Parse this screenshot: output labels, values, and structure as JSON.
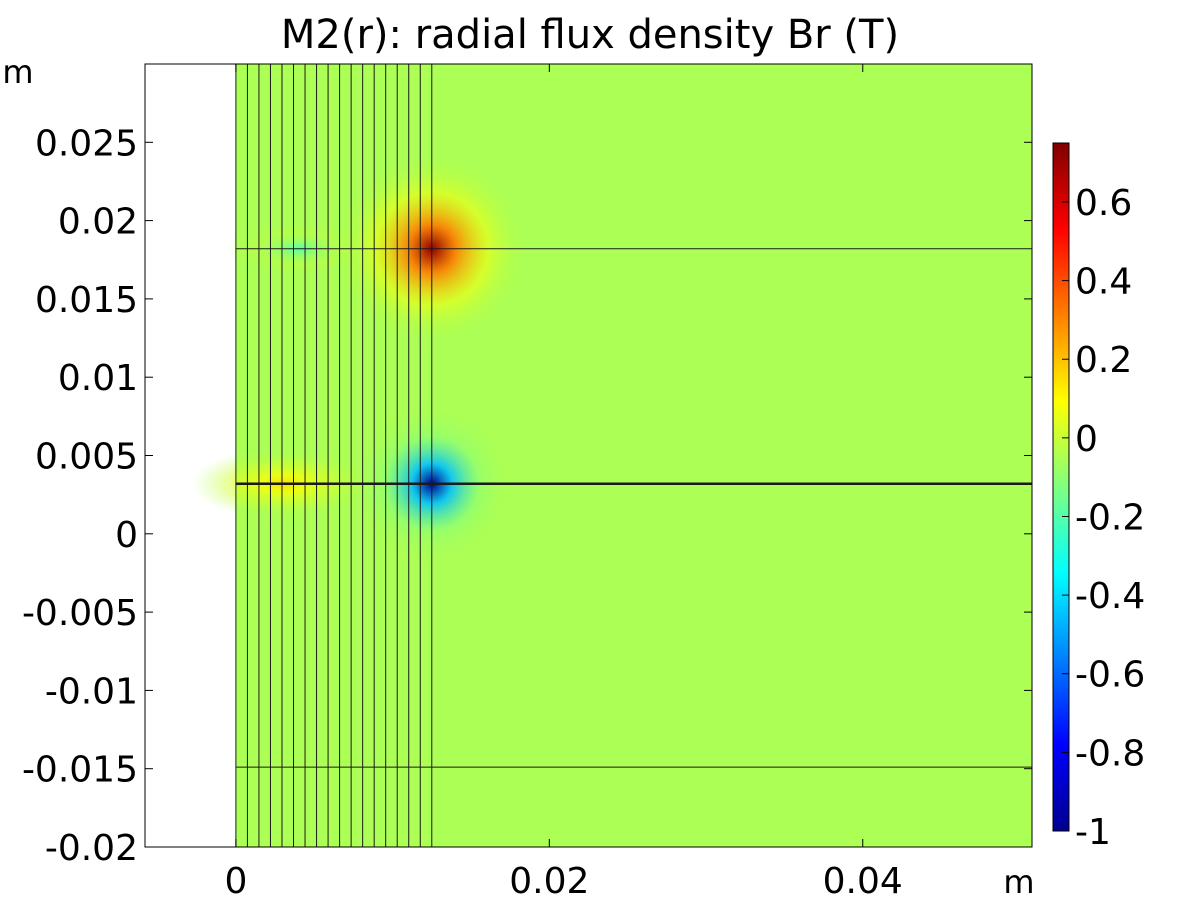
{
  "chart_data": {
    "type": "heatmap",
    "title": "M2(r): radial flux density Br (T)",
    "x_unit_label": "m",
    "y_unit_label": "m",
    "xlim": [
      -0.0058,
      0.0508
    ],
    "ylim": [
      -0.02,
      0.03
    ],
    "x_ticks": [
      0,
      0.02,
      0.04
    ],
    "x_tick_labels": [
      "0",
      "0.02",
      "0.04"
    ],
    "y_ticks": [
      -0.02,
      -0.015,
      -0.01,
      -0.005,
      0,
      0.005,
      0.01,
      0.015,
      0.02,
      0.025
    ],
    "y_tick_labels": [
      "-0.02",
      "-0.015",
      "-0.01",
      "-0.005",
      "0",
      "0.005",
      "0.01",
      "0.015",
      "0.02",
      "0.025"
    ],
    "colorbar": {
      "range": [
        -1,
        0.75
      ],
      "ticks": [
        -1,
        -0.8,
        -0.6,
        -0.4,
        -0.2,
        0,
        0.2,
        0.4,
        0.6
      ],
      "tick_labels": [
        "-1",
        "-0.8",
        "-0.6",
        "-0.4",
        "-0.2",
        "0",
        "0.2",
        "0.4",
        "0.6"
      ],
      "colormap": "rainbow"
    },
    "domain_r": [
      0,
      0.0508
    ],
    "conductor_stack_r_max": 0.0125,
    "conductor_layers": 17,
    "boundary_lines_z": [
      0.0182,
      0.0032,
      -0.0149
    ],
    "background_value": -0.05,
    "field_peaks": [
      {
        "r": 0.0125,
        "z": 0.0182,
        "value": 0.72
      },
      {
        "r": 0.0125,
        "z": 0.0032,
        "value": -1.0
      },
      {
        "r": 0.003,
        "z": 0.0032,
        "value": 0.15
      },
      {
        "r": 0.004,
        "z": 0.0182,
        "value": -0.2
      }
    ],
    "grid": false
  }
}
